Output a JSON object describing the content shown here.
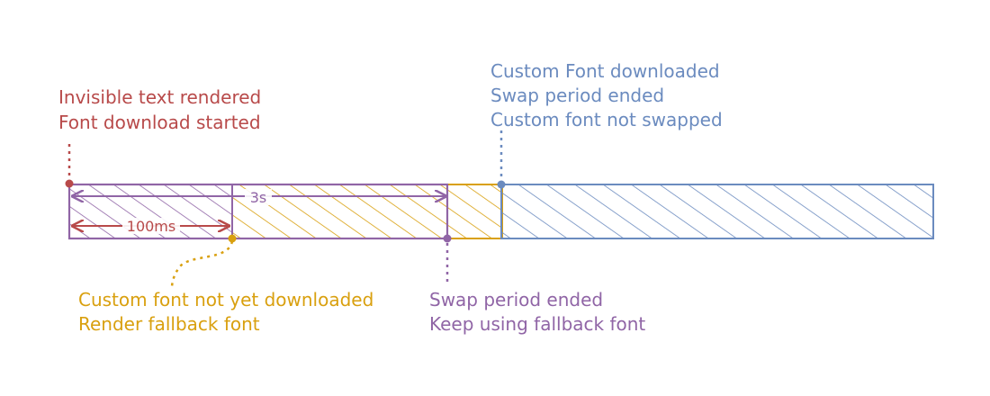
{
  "colors": {
    "red": "#b84a4a",
    "purple": "#9065a6",
    "orange": "#d9a00f",
    "blue": "#6b8bbf"
  },
  "labels": {
    "start_line1": "Invisible text rendered",
    "start_line2": "Font download started",
    "fallback_line1": "Custom font not yet downloaded",
    "fallback_line2": "Render fallback font",
    "swap_line1": "Swap period ended",
    "swap_line2": "Keep using fallback font",
    "downloaded_line1": "Custom Font downloaded",
    "downloaded_line2": "Swap period ended",
    "downloaded_line3": "Custom font not swapped"
  },
  "dimensions": {
    "block_period": "100ms",
    "swap_period": "3s"
  }
}
